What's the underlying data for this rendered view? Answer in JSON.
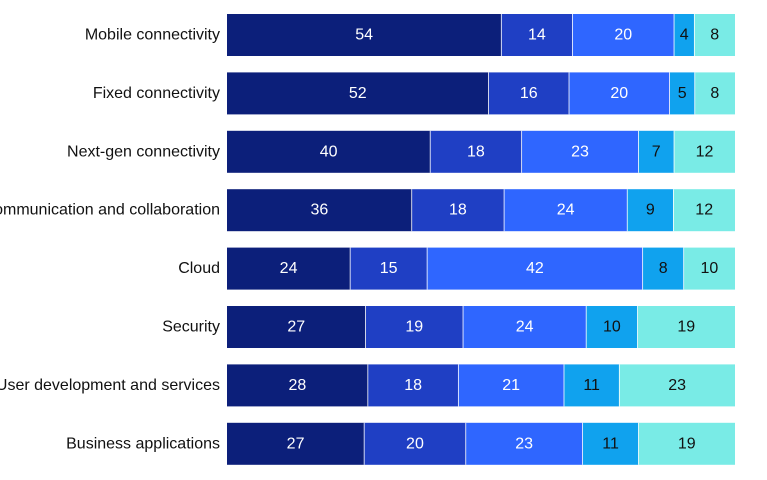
{
  "chart_data": {
    "type": "bar",
    "orientation": "horizontal",
    "stacked": true,
    "normalized_percent": true,
    "grid": false,
    "legend": "none",
    "title": "",
    "xlabel": "",
    "ylabel": "",
    "categories": [
      "Mobile connectivity",
      "Fixed connectivity",
      "Next-gen connectivity",
      "Communication and collaboration",
      "Cloud",
      "Security",
      "User development and services",
      "Business applications"
    ],
    "series": [
      {
        "values": [
          54,
          52,
          40,
          36,
          24,
          27,
          28,
          27
        ],
        "color": "#0c1f7a",
        "label_color": "#ffffff"
      },
      {
        "values": [
          14,
          16,
          18,
          18,
          15,
          19,
          18,
          20
        ],
        "color": "#1f3fc4",
        "label_color": "#ffffff"
      },
      {
        "values": [
          20,
          20,
          23,
          24,
          42,
          24,
          21,
          23
        ],
        "color": "#2f66ff",
        "label_color": "#ffffff"
      },
      {
        "values": [
          4,
          5,
          7,
          9,
          8,
          10,
          11,
          11
        ],
        "color": "#10a2ee",
        "label_color": "#111111"
      },
      {
        "values": [
          8,
          8,
          12,
          12,
          10,
          19,
          23,
          19
        ],
        "color": "#79ebe6",
        "label_color": "#111111"
      }
    ]
  }
}
